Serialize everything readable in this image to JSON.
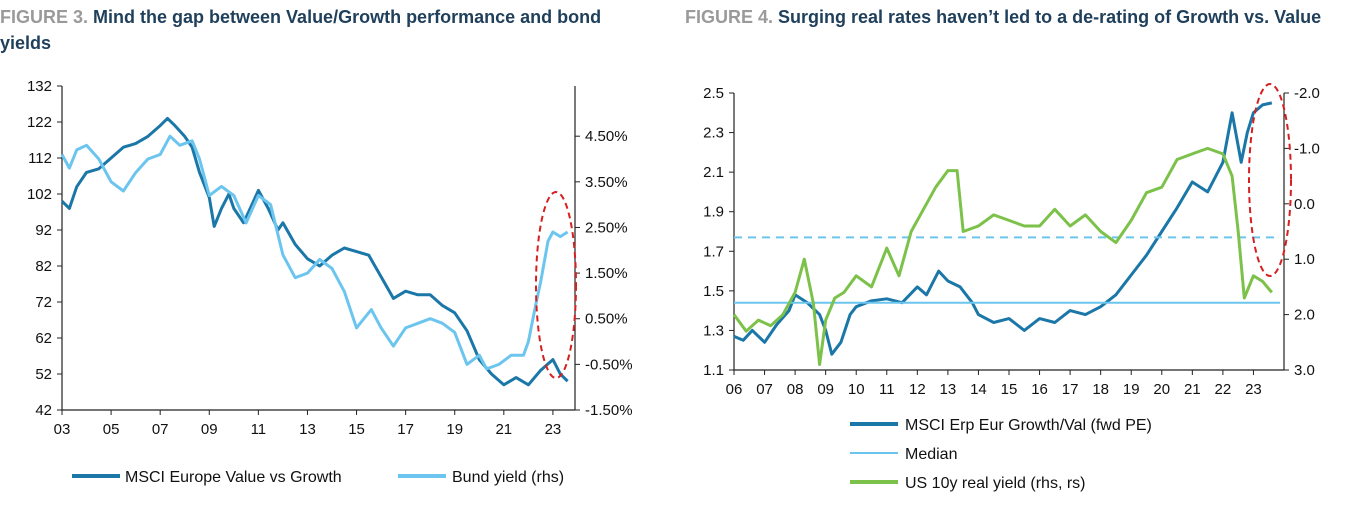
{
  "figures": [
    {
      "label": "FIGURE 3.",
      "title": "Mind the gap between Value/Growth performance and bond yields",
      "chart_data": {
        "type": "line",
        "x_ticks": [
          "03",
          "05",
          "07",
          "09",
          "11",
          "13",
          "15",
          "17",
          "19",
          "21",
          "23"
        ],
        "x_range": [
          2003,
          2023.9
        ],
        "y_left_ticks": [
          "132",
          "122",
          "112",
          "102",
          "92",
          "82",
          "72",
          "62",
          "52",
          "42"
        ],
        "y_left_range": [
          42,
          132
        ],
        "y_right_ticks": [
          "4.50%",
          "3.50%",
          "2.50%",
          "1.50%",
          "0.50%",
          "-0.50%",
          "-1.50%"
        ],
        "y_right_range": [
          -1.5,
          5.6
        ],
        "grid": false,
        "legend_placement": "bottom",
        "series": [
          {
            "name": "MSCI Europe Value vs Growth",
            "axis": "left",
            "color": "#1a77a8",
            "points": [
              [
                2003.0,
                100
              ],
              [
                2003.3,
                98
              ],
              [
                2003.6,
                104
              ],
              [
                2004.0,
                108
              ],
              [
                2004.5,
                109
              ],
              [
                2005.0,
                112
              ],
              [
                2005.5,
                115
              ],
              [
                2006.0,
                116
              ],
              [
                2006.5,
                118
              ],
              [
                2007.0,
                121
              ],
              [
                2007.3,
                123
              ],
              [
                2007.6,
                121
              ],
              [
                2008.0,
                118
              ],
              [
                2008.3,
                115
              ],
              [
                2008.6,
                108
              ],
              [
                2009.0,
                101
              ],
              [
                2009.2,
                93
              ],
              [
                2009.5,
                98
              ],
              [
                2009.8,
                102
              ],
              [
                2010.0,
                98
              ],
              [
                2010.4,
                94
              ],
              [
                2010.8,
                100
              ],
              [
                2011.0,
                103
              ],
              [
                2011.4,
                98
              ],
              [
                2011.8,
                92
              ],
              [
                2012.0,
                94
              ],
              [
                2012.5,
                88
              ],
              [
                2013.0,
                84
              ],
              [
                2013.5,
                82
              ],
              [
                2014.0,
                85
              ],
              [
                2014.5,
                87
              ],
              [
                2015.0,
                86
              ],
              [
                2015.5,
                85
              ],
              [
                2016.0,
                79
              ],
              [
                2016.5,
                73
              ],
              [
                2017.0,
                75
              ],
              [
                2017.5,
                74
              ],
              [
                2018.0,
                74
              ],
              [
                2018.5,
                71
              ],
              [
                2019.0,
                69
              ],
              [
                2019.5,
                64
              ],
              [
                2020.0,
                56
              ],
              [
                2020.5,
                52
              ],
              [
                2021.0,
                49
              ],
              [
                2021.5,
                51
              ],
              [
                2022.0,
                49
              ],
              [
                2022.5,
                53
              ],
              [
                2023.0,
                56
              ],
              [
                2023.3,
                52
              ],
              [
                2023.6,
                50
              ]
            ]
          },
          {
            "name": "Bund yield (rhs)",
            "axis": "right",
            "color": "#6cc5ee",
            "points": [
              [
                2003.0,
                4.1
              ],
              [
                2003.3,
                3.8
              ],
              [
                2003.6,
                4.2
              ],
              [
                2004.0,
                4.3
              ],
              [
                2004.5,
                4.0
              ],
              [
                2005.0,
                3.5
              ],
              [
                2005.5,
                3.3
              ],
              [
                2006.0,
                3.7
              ],
              [
                2006.5,
                4.0
              ],
              [
                2007.0,
                4.1
              ],
              [
                2007.4,
                4.5
              ],
              [
                2007.8,
                4.3
              ],
              [
                2008.3,
                4.4
              ],
              [
                2008.6,
                4.0
              ],
              [
                2009.0,
                3.2
              ],
              [
                2009.5,
                3.4
              ],
              [
                2010.0,
                3.2
              ],
              [
                2010.5,
                2.6
              ],
              [
                2011.0,
                3.2
              ],
              [
                2011.5,
                3.0
              ],
              [
                2012.0,
                1.9
              ],
              [
                2012.5,
                1.4
              ],
              [
                2013.0,
                1.5
              ],
              [
                2013.5,
                1.8
              ],
              [
                2014.0,
                1.6
              ],
              [
                2014.5,
                1.1
              ],
              [
                2015.0,
                0.3
              ],
              [
                2015.3,
                0.5
              ],
              [
                2015.6,
                0.7
              ],
              [
                2016.0,
                0.3
              ],
              [
                2016.5,
                -0.1
              ],
              [
                2017.0,
                0.3
              ],
              [
                2017.5,
                0.4
              ],
              [
                2018.0,
                0.5
              ],
              [
                2018.5,
                0.4
              ],
              [
                2019.0,
                0.2
              ],
              [
                2019.5,
                -0.5
              ],
              [
                2020.0,
                -0.3
              ],
              [
                2020.3,
                -0.6
              ],
              [
                2020.8,
                -0.5
              ],
              [
                2021.3,
                -0.3
              ],
              [
                2021.8,
                -0.3
              ],
              [
                2022.0,
                0.0
              ],
              [
                2022.3,
                0.8
              ],
              [
                2022.5,
                1.3
              ],
              [
                2022.8,
                2.2
              ],
              [
                2023.0,
                2.4
              ],
              [
                2023.3,
                2.3
              ],
              [
                2023.6,
                2.4
              ]
            ]
          }
        ],
        "annotations": [
          "dashed red ellipse around 2022-2023"
        ]
      }
    },
    {
      "label": "FIGURE 4.",
      "title": "Surging real rates haven’t led to a de-rating of Growth vs. Value",
      "chart_data": {
        "type": "line",
        "x_ticks": [
          "06",
          "07",
          "08",
          "09",
          "10",
          "11",
          "12",
          "13",
          "14",
          "15",
          "16",
          "17",
          "18",
          "19",
          "20",
          "21",
          "22",
          "23"
        ],
        "x_range": [
          2006,
          2024
        ],
        "y_left_ticks": [
          "2.5",
          "2.3",
          "2.1",
          "1.9",
          "1.7",
          "1.5",
          "1.3",
          "1.1"
        ],
        "y_left_range": [
          1.1,
          2.5
        ],
        "y_right_ticks": [
          "-2.0",
          "-1.0",
          "0.0",
          "1.0",
          "2.0",
          "3.0"
        ],
        "y_right_range": [
          -2.0,
          3.0
        ],
        "y_right_reversed": true,
        "grid": false,
        "legend_placement": "bottom",
        "series": [
          {
            "name": "MSCI Erp Eur Growth/Val (fwd PE)",
            "axis": "left",
            "color": "#1a77a8",
            "points": [
              [
                2006.0,
                1.27
              ],
              [
                2006.3,
                1.25
              ],
              [
                2006.6,
                1.3
              ],
              [
                2007.0,
                1.24
              ],
              [
                2007.4,
                1.33
              ],
              [
                2007.8,
                1.4
              ],
              [
                2008.0,
                1.48
              ],
              [
                2008.4,
                1.44
              ],
              [
                2008.8,
                1.38
              ],
              [
                2009.0,
                1.3
              ],
              [
                2009.2,
                1.18
              ],
              [
                2009.5,
                1.24
              ],
              [
                2009.8,
                1.38
              ],
              [
                2010.0,
                1.42
              ],
              [
                2010.5,
                1.45
              ],
              [
                2011.0,
                1.46
              ],
              [
                2011.5,
                1.44
              ],
              [
                2012.0,
                1.52
              ],
              [
                2012.3,
                1.48
              ],
              [
                2012.7,
                1.6
              ],
              [
                2013.0,
                1.55
              ],
              [
                2013.4,
                1.52
              ],
              [
                2013.8,
                1.44
              ],
              [
                2014.0,
                1.38
              ],
              [
                2014.5,
                1.34
              ],
              [
                2015.0,
                1.36
              ],
              [
                2015.5,
                1.3
              ],
              [
                2016.0,
                1.36
              ],
              [
                2016.5,
                1.34
              ],
              [
                2017.0,
                1.4
              ],
              [
                2017.5,
                1.38
              ],
              [
                2018.0,
                1.42
              ],
              [
                2018.5,
                1.48
              ],
              [
                2019.0,
                1.58
              ],
              [
                2019.5,
                1.68
              ],
              [
                2020.0,
                1.8
              ],
              [
                2020.5,
                1.92
              ],
              [
                2021.0,
                2.05
              ],
              [
                2021.5,
                2.0
              ],
              [
                2022.0,
                2.15
              ],
              [
                2022.3,
                2.4
              ],
              [
                2022.6,
                2.15
              ],
              [
                2022.8,
                2.3
              ],
              [
                2023.0,
                2.4
              ],
              [
                2023.3,
                2.44
              ],
              [
                2023.6,
                2.45
              ]
            ]
          },
          {
            "name": "Median",
            "axis": "left",
            "color": "#6cc5ee",
            "style": "solid",
            "value": 1.44
          },
          {
            "name": "",
            "axis": "left",
            "color": "#6cc5ee",
            "style": "dashed",
            "value": 1.77
          },
          {
            "name": "US 10y real yield (rhs, rs)",
            "axis": "right",
            "color": "#7cc24a",
            "points": [
              [
                2006.0,
                2.0
              ],
              [
                2006.4,
                2.3
              ],
              [
                2006.8,
                2.1
              ],
              [
                2007.2,
                2.2
              ],
              [
                2007.6,
                2.0
              ],
              [
                2008.0,
                1.6
              ],
              [
                2008.3,
                1.0
              ],
              [
                2008.6,
                1.8
              ],
              [
                2008.8,
                2.9
              ],
              [
                2009.0,
                2.1
              ],
              [
                2009.3,
                1.7
              ],
              [
                2009.6,
                1.6
              ],
              [
                2010.0,
                1.3
              ],
              [
                2010.5,
                1.5
              ],
              [
                2011.0,
                0.8
              ],
              [
                2011.4,
                1.3
              ],
              [
                2011.8,
                0.5
              ],
              [
                2012.3,
                0.0
              ],
              [
                2012.6,
                -0.3
              ],
              [
                2013.0,
                -0.6
              ],
              [
                2013.3,
                -0.6
              ],
              [
                2013.5,
                0.5
              ],
              [
                2014.0,
                0.4
              ],
              [
                2014.5,
                0.2
              ],
              [
                2015.0,
                0.3
              ],
              [
                2015.5,
                0.4
              ],
              [
                2016.0,
                0.4
              ],
              [
                2016.5,
                0.1
              ],
              [
                2017.0,
                0.4
              ],
              [
                2017.5,
                0.2
              ],
              [
                2018.0,
                0.5
              ],
              [
                2018.5,
                0.7
              ],
              [
                2019.0,
                0.3
              ],
              [
                2019.5,
                -0.2
              ],
              [
                2020.0,
                -0.3
              ],
              [
                2020.5,
                -0.8
              ],
              [
                2021.0,
                -0.9
              ],
              [
                2021.5,
                -1.0
              ],
              [
                2022.0,
                -0.9
              ],
              [
                2022.3,
                -0.5
              ],
              [
                2022.5,
                0.5
              ],
              [
                2022.7,
                1.7
              ],
              [
                2023.0,
                1.3
              ],
              [
                2023.3,
                1.4
              ],
              [
                2023.6,
                1.6
              ]
            ]
          }
        ],
        "annotations": [
          "dashed red ellipse around 2022-2023"
        ]
      }
    }
  ]
}
